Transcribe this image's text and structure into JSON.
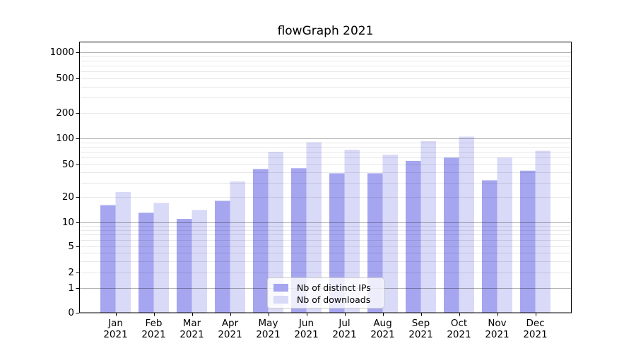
{
  "chart_data": {
    "type": "bar",
    "title": "flowGraph 2021",
    "month_labels": [
      "Jan",
      "Feb",
      "Mar",
      "Apr",
      "May",
      "Jun",
      "Jul",
      "Aug",
      "Sep",
      "Oct",
      "Nov",
      "Dec"
    ],
    "year_label": "2021",
    "categories": [
      "Jan 2021",
      "Feb 2021",
      "Mar 2021",
      "Apr 2021",
      "May 2021",
      "Jun 2021",
      "Jul 2021",
      "Aug 2021",
      "Sep 2021",
      "Oct 2021",
      "Nov 2021",
      "Dec 2021"
    ],
    "series": [
      {
        "name": "Nb of distinct IPs",
        "color": "#a5a5f0",
        "values": [
          16,
          13,
          11,
          18,
          44,
          45,
          39,
          39,
          55,
          60,
          32,
          42
        ]
      },
      {
        "name": "Nb of downloads",
        "color": "#d9d9f8",
        "values": [
          23,
          17,
          14,
          31,
          70,
          90,
          74,
          65,
          93,
          105,
          60,
          72
        ]
      }
    ],
    "yscale": "symlog",
    "yticks": [
      0,
      1,
      2,
      5,
      10,
      20,
      50,
      100,
      200,
      500,
      1000
    ],
    "ylim": [
      0,
      1300
    ],
    "grid": true,
    "legend": {
      "position": "lower center",
      "entries": [
        "Nb of distinct IPs",
        "Nb of downloads"
      ]
    },
    "colors": {
      "major_grid": "rgba(0,0,0,0.30)",
      "minor_grid": "rgba(0,0,0,0.09)",
      "axis": "#000000"
    }
  }
}
